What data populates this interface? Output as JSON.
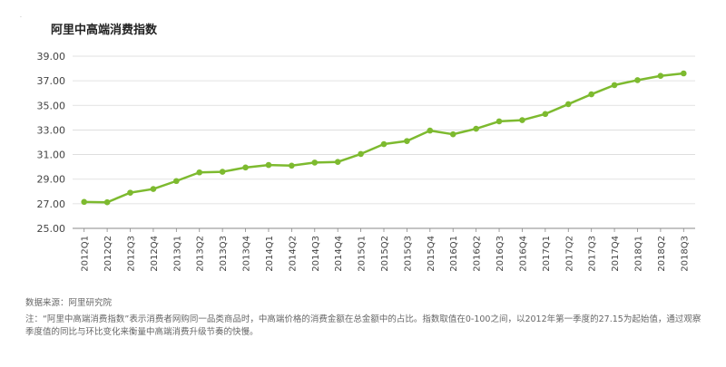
{
  "mark": ".",
  "chart_data": {
    "type": "line",
    "title": "阿里中高端消费指数",
    "xlabel": "",
    "ylabel": "",
    "ylim": [
      25,
      39
    ],
    "yticks": [
      "25.00",
      "27.00",
      "29.00",
      "31.00",
      "33.00",
      "35.00",
      "37.00",
      "39.00"
    ],
    "grid": true,
    "categories": [
      "2012Q1",
      "2012Q2",
      "2012Q3",
      "2012Q4",
      "2013Q1",
      "2013Q2",
      "2013Q3",
      "2013Q4",
      "2014Q1",
      "2014Q2",
      "2014Q3",
      "2014Q4",
      "2015Q1",
      "2015Q2",
      "2015Q3",
      "2015Q4",
      "2016Q1",
      "2016Q2",
      "2016Q3",
      "2016Q4",
      "2017Q1",
      "2017Q2",
      "2017Q3",
      "2017Q4",
      "2018Q1",
      "2018Q2",
      "2018Q3"
    ],
    "series": [
      {
        "values": [
          27.15,
          27.12,
          27.9,
          28.2,
          28.85,
          29.55,
          29.6,
          29.95,
          30.15,
          30.1,
          30.35,
          30.4,
          31.05,
          31.85,
          32.1,
          32.95,
          32.65,
          33.1,
          33.7,
          33.8,
          34.3,
          35.1,
          35.9,
          36.65,
          37.05,
          37.4,
          37.6
        ]
      }
    ],
    "line_color": "#7dba2f"
  },
  "footer": {
    "source": "数据来源：阿里研究院",
    "note": "注：“阿里中高端消费指数”表示消费者网购同一品类商品时，中高端价格的消费金额在总金额中的占比。指数取值在0-100之间，以2012年第一季度的27.15为起始值，通过观察季度值的同比与环比变化来衡量中高端消费升级节奏的快慢。"
  }
}
